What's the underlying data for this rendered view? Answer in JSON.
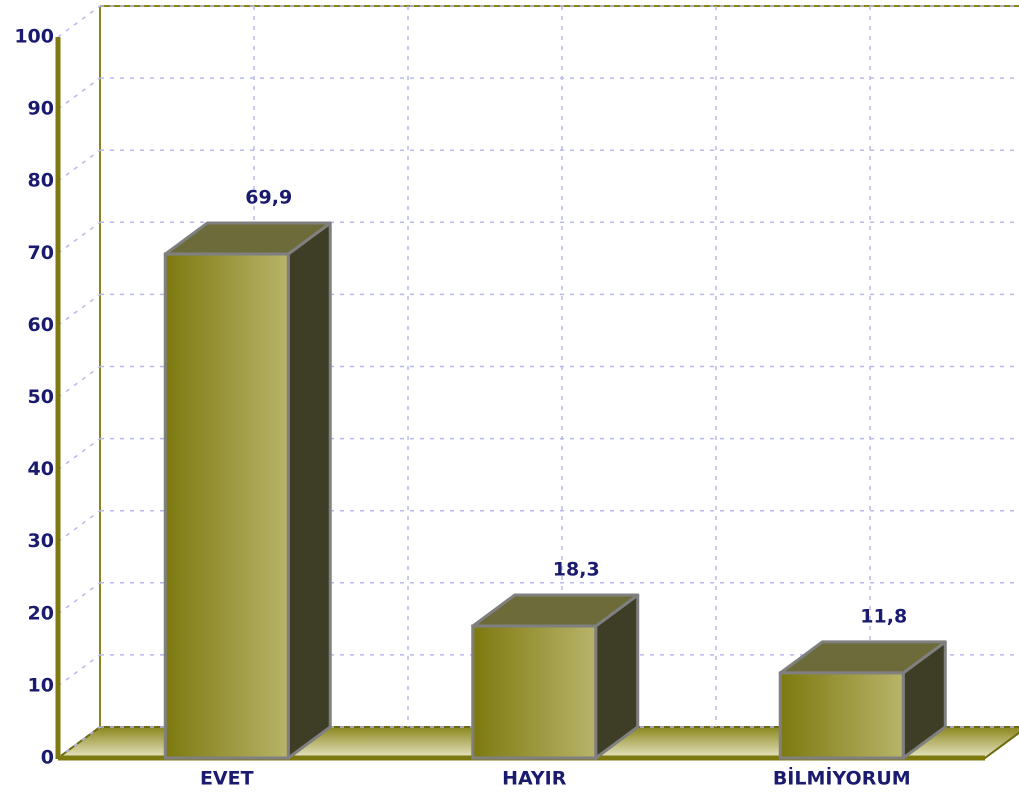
{
  "chart_data": {
    "type": "bar",
    "categories": [
      "EVET",
      "HAYIR",
      "BİLMİYORUM"
    ],
    "values": [
      69.9,
      18.3,
      11.8
    ],
    "value_labels": [
      "69,9",
      "18,3",
      "11,8"
    ],
    "color": "#8c8a2a",
    "ylim": [
      0,
      100
    ],
    "yticks": [
      0,
      10,
      20,
      30,
      40,
      50,
      60,
      70,
      80,
      90,
      100
    ],
    "grid": true
  }
}
